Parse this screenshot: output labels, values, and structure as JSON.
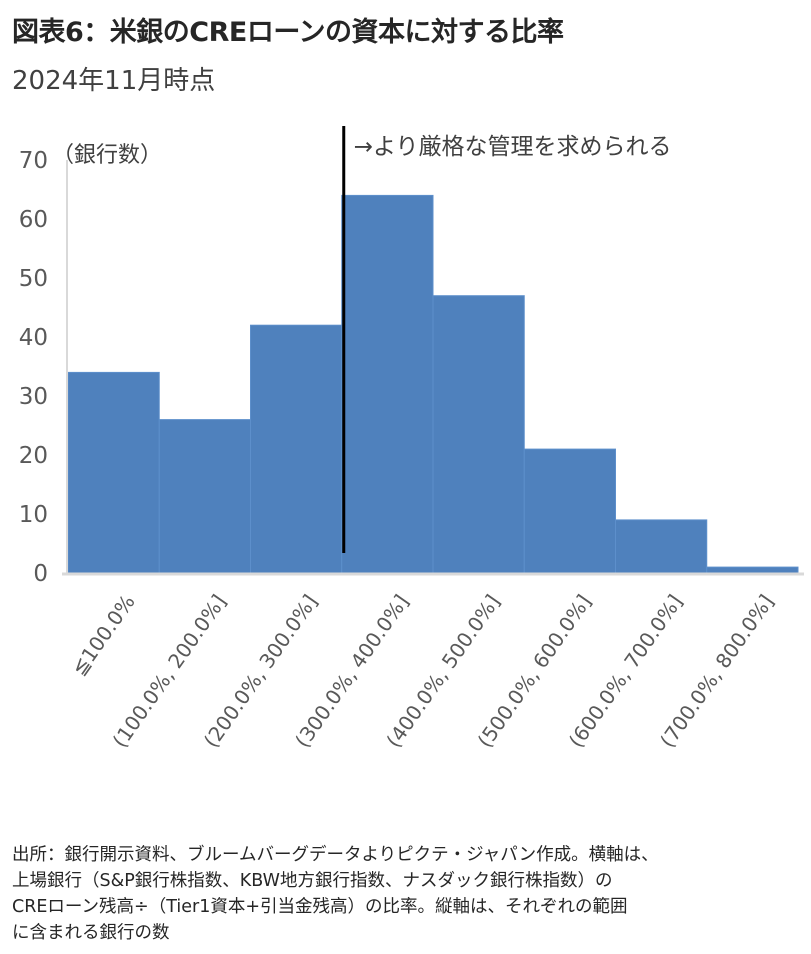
{
  "header": {
    "title": "図表6：米銀のCREローンの資本に対する比率",
    "subtitle": "2024年11月時点"
  },
  "chart_data": {
    "type": "bar",
    "categories": [
      "≦100.0%",
      "(100.0%, 200.0%]",
      "(200.0%, 300.0%]",
      "(300.0%, 400.0%]",
      "(400.0%, 500.0%]",
      "(500.0%, 600.0%]",
      "(600.0%, 700.0%]",
      "(700.0%, 800.0%]"
    ],
    "values": [
      34,
      26,
      42,
      64,
      47,
      21,
      9,
      1
    ],
    "yticks": [
      0,
      10,
      20,
      30,
      40,
      50,
      60,
      70
    ],
    "ylim": [
      0,
      70
    ],
    "ylabel": "（銀行数）",
    "grid": false,
    "annotation": {
      "text": "→より厳格な管理を求められる",
      "x_position": "between (200.0%, 300.0%] and (300.0%, 400.0%]"
    },
    "colors": {
      "bar": "#4f81bd",
      "bar_edge": "#5d8fcb",
      "axis": "#d9d9d9",
      "marker_line": "#000000"
    }
  },
  "footnote": {
    "lines": [
      "出所：銀行開示資料、ブルームバーグデータよりピクテ・ジャパン作成。横軸は、",
      "上場銀行（S&P銀行株指数、KBW地方銀行指数、ナスダック銀行株指数）の",
      "CREローン残高÷（Tier1資本+引当金残高）の比率。縦軸は、それぞれの範囲",
      "に含まれる銀行の数"
    ]
  }
}
